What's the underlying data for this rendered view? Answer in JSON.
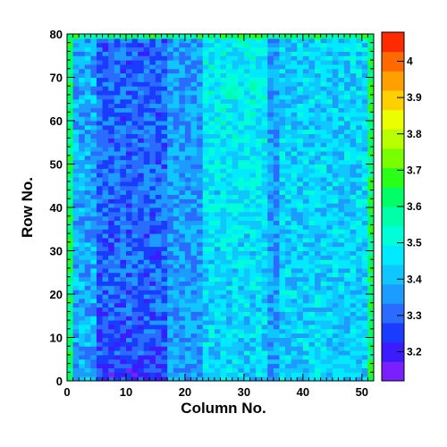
{
  "chart_data": {
    "type": "heatmap",
    "title": "",
    "xlabel": "Column No.",
    "ylabel": "Row No.",
    "xlim": [
      0,
      52
    ],
    "ylim": [
      0,
      80
    ],
    "x_ticks": [
      "0",
      "10",
      "20",
      "30",
      "40",
      "50"
    ],
    "y_ticks": [
      "0",
      "10",
      "20",
      "30",
      "40",
      "50",
      "60",
      "70",
      "80"
    ],
    "colorbar": {
      "range": [
        3.12,
        4.08
      ],
      "tick_labels": [
        "3.2",
        "3.3",
        "3.4",
        "3.5",
        "3.6",
        "3.7",
        "3.8",
        "3.9",
        "4"
      ],
      "colors": [
        "#7a1fff",
        "#3a1cff",
        "#1a3cff",
        "#2a6cff",
        "#1c9cff",
        "#10c6ff",
        "#00eaff",
        "#00ffd8",
        "#00ffa8",
        "#00ff66",
        "#2aff1a",
        "#78ff00",
        "#b8ff00",
        "#ecff00",
        "#ffd000",
        "#ffa000",
        "#ff6a00",
        "#ff2a00"
      ]
    },
    "grid": false,
    "cells_note": "Per-cell values for the 52×80 grid are not individually labeled; the field is summarized by column-band means (left/middle/right) and a row trend, in data units.",
    "column_band_means": [
      {
        "columns": [
          0,
          5
        ],
        "value": 3.38
      },
      {
        "columns": [
          5,
          17
        ],
        "value": 3.3
      },
      {
        "columns": [
          17,
          23
        ],
        "value": 3.36
      },
      {
        "columns": [
          23,
          34
        ],
        "value": 3.46
      },
      {
        "columns": [
          34,
          36
        ],
        "value": 3.36
      },
      {
        "columns": [
          36,
          52
        ],
        "value": 3.43
      }
    ],
    "edge_value": 3.62
  }
}
